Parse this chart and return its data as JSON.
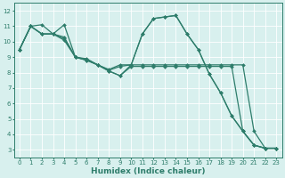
{
  "line_color": "#2e7d6b",
  "bg_color": "#d8f0ee",
  "grid_color": "#ffffff",
  "xlabel": "Humidex (Indice chaleur)",
  "xlim": [
    -0.5,
    23.5
  ],
  "ylim": [
    2.5,
    12.5
  ],
  "xticks": [
    0,
    1,
    2,
    3,
    4,
    5,
    6,
    7,
    8,
    9,
    10,
    11,
    12,
    13,
    14,
    15,
    16,
    17,
    18,
    19,
    20,
    21,
    22,
    23
  ],
  "yticks": [
    3,
    4,
    5,
    6,
    7,
    8,
    9,
    10,
    11,
    12
  ],
  "tick_fontsize": 5.0,
  "xlabel_fontsize": 6.5,
  "marker": "D",
  "markersize": 2.0,
  "linewidth": 0.9,
  "lines": [
    {
      "x": [
        0,
        1,
        2,
        3,
        4,
        5,
        6,
        7,
        8,
        9,
        10,
        11,
        12,
        13,
        14,
        15,
        16,
        17,
        18,
        19,
        20,
        21,
        22,
        23
      ],
      "y": [
        9.5,
        11.0,
        11.1,
        10.5,
        11.1,
        9.0,
        8.9,
        8.5,
        8.1,
        7.8,
        8.5,
        10.5,
        11.5,
        11.6,
        11.7,
        10.5,
        9.5,
        7.9,
        6.7,
        5.2,
        4.2,
        3.3,
        3.1,
        3.1
      ]
    },
    {
      "x": [
        0,
        1,
        2,
        3,
        4,
        5,
        6,
        7,
        8,
        9,
        10,
        11,
        12,
        13,
        14,
        15,
        16,
        17,
        18,
        19,
        20,
        21,
        22,
        23
      ],
      "y": [
        9.5,
        11.0,
        10.5,
        10.5,
        10.2,
        9.0,
        8.8,
        8.5,
        8.2,
        8.5,
        8.5,
        10.5,
        11.5,
        11.6,
        11.7,
        10.5,
        9.5,
        7.9,
        6.7,
        5.2,
        4.2,
        3.3,
        3.1,
        3.1
      ]
    },
    {
      "x": [
        0,
        1,
        2,
        3,
        4,
        5,
        6,
        7,
        8,
        9,
        10,
        11,
        12,
        13,
        14,
        15,
        16,
        17,
        18,
        19,
        20,
        21,
        22,
        23
      ],
      "y": [
        9.5,
        11.0,
        10.5,
        10.5,
        10.3,
        9.0,
        8.85,
        8.5,
        8.15,
        8.4,
        8.5,
        8.5,
        8.5,
        8.5,
        8.5,
        8.5,
        8.5,
        8.5,
        8.5,
        8.5,
        8.5,
        4.2,
        3.1,
        3.1
      ]
    },
    {
      "x": [
        0,
        1,
        2,
        3,
        4,
        5,
        6,
        7,
        8,
        9,
        10,
        11,
        12,
        13,
        14,
        15,
        16,
        17,
        18,
        19,
        20,
        21,
        22,
        23
      ],
      "y": [
        9.5,
        11.0,
        10.5,
        10.5,
        10.1,
        9.0,
        8.8,
        8.5,
        8.1,
        7.8,
        8.4,
        8.4,
        8.4,
        8.4,
        8.4,
        8.4,
        8.4,
        8.4,
        8.4,
        8.4,
        4.2,
        3.3,
        3.1,
        3.1
      ]
    }
  ]
}
